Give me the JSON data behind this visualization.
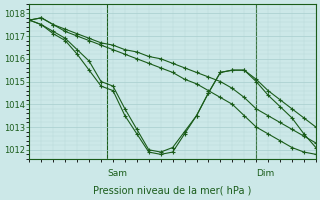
{
  "xlabel": "Pression niveau de la mer( hPa )",
  "bg_color": "#cce8e8",
  "grid_color_major": "#a8cece",
  "grid_color_minor": "#b8d8d8",
  "line_color": "#1a5c1a",
  "ylim": [
    1011.6,
    1018.4
  ],
  "xlim": [
    0,
    48
  ],
  "yticks": [
    1012,
    1013,
    1014,
    1015,
    1016,
    1017,
    1018
  ],
  "sam_x": 13,
  "dim_x": 38,
  "lines": [
    {
      "x": [
        0,
        2,
        4,
        6,
        8,
        10,
        12,
        14,
        16,
        18,
        20,
        22,
        24,
        26,
        28,
        30,
        32,
        34,
        36,
        38,
        40,
        42,
        44,
        46,
        48
      ],
      "y": [
        1017.7,
        1017.8,
        1017.5,
        1017.3,
        1017.1,
        1016.9,
        1016.7,
        1016.6,
        1016.4,
        1016.3,
        1016.1,
        1016.0,
        1015.8,
        1015.6,
        1015.4,
        1015.2,
        1015.0,
        1014.7,
        1014.3,
        1013.8,
        1013.5,
        1013.2,
        1012.9,
        1012.6,
        1012.3
      ]
    },
    {
      "x": [
        0,
        2,
        4,
        6,
        8,
        10,
        12,
        14,
        16,
        18,
        20,
        22,
        24,
        26,
        28,
        30,
        32,
        34,
        36,
        38,
        40,
        42,
        44,
        46,
        48
      ],
      "y": [
        1017.7,
        1017.5,
        1017.2,
        1016.9,
        1016.4,
        1015.9,
        1015.0,
        1014.8,
        1013.8,
        1012.9,
        1012.0,
        1011.9,
        1012.1,
        1012.8,
        1013.5,
        1014.5,
        1015.4,
        1015.5,
        1015.5,
        1015.1,
        1014.6,
        1014.2,
        1013.8,
        1013.4,
        1013.0
      ]
    },
    {
      "x": [
        0,
        2,
        4,
        6,
        8,
        10,
        12,
        14,
        16,
        18,
        20,
        22,
        24,
        26,
        28,
        30,
        32,
        34,
        36,
        38,
        40,
        42,
        44,
        46,
        48
      ],
      "y": [
        1017.7,
        1017.5,
        1017.1,
        1016.8,
        1016.2,
        1015.5,
        1014.8,
        1014.6,
        1013.5,
        1012.7,
        1011.9,
        1011.8,
        1011.9,
        1012.7,
        1013.5,
        1014.5,
        1015.4,
        1015.5,
        1015.5,
        1015.0,
        1014.4,
        1013.9,
        1013.4,
        1012.7,
        1012.1
      ]
    },
    {
      "x": [
        0,
        2,
        4,
        6,
        8,
        10,
        12,
        14,
        16,
        18,
        20,
        22,
        24,
        26,
        28,
        30,
        32,
        34,
        36,
        38,
        40,
        42,
        44,
        46,
        48
      ],
      "y": [
        1017.7,
        1017.8,
        1017.5,
        1017.2,
        1017.0,
        1016.8,
        1016.6,
        1016.4,
        1016.2,
        1016.0,
        1015.8,
        1015.6,
        1015.4,
        1015.1,
        1014.9,
        1014.6,
        1014.3,
        1014.0,
        1013.5,
        1013.0,
        1012.7,
        1012.4,
        1012.1,
        1011.9,
        1011.8
      ]
    }
  ],
  "marker": "+",
  "markersize": 3.5,
  "linewidth": 0.8,
  "ytick_fontsize": 6,
  "xlabel_fontsize": 7
}
